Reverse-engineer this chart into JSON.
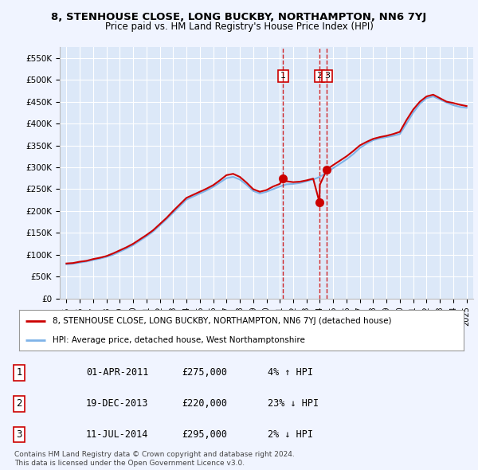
{
  "title": "8, STENHOUSE CLOSE, LONG BUCKBY, NORTHAMPTON, NN6 7YJ",
  "subtitle": "Price paid vs. HM Land Registry's House Price Index (HPI)",
  "background_color": "#f0f4ff",
  "plot_bg_color": "#dce8f8",
  "ylim": [
    0,
    575000
  ],
  "yticks": [
    0,
    50000,
    100000,
    150000,
    200000,
    250000,
    300000,
    350000,
    400000,
    450000,
    500000,
    550000
  ],
  "ytick_labels": [
    "£0",
    "£50K",
    "£100K",
    "£150K",
    "£200K",
    "£250K",
    "£300K",
    "£350K",
    "£400K",
    "£450K",
    "£500K",
    "£550K"
  ],
  "hpi_color": "#7fb3e8",
  "price_color": "#cc0000",
  "sale_marker_color": "#cc0000",
  "sale_points": [
    {
      "date": 2011.25,
      "price": 275000,
      "label": "1"
    },
    {
      "date": 2013.97,
      "price": 220000,
      "label": "2"
    },
    {
      "date": 2014.53,
      "price": 295000,
      "label": "3"
    }
  ],
  "vline_color": "#cc0000",
  "legend_red_label": "8, STENHOUSE CLOSE, LONG BUCKBY, NORTHAMPTON, NN6 7YJ (detached house)",
  "legend_blue_label": "HPI: Average price, detached house, West Northamptonshire",
  "table_rows": [
    {
      "num": "1",
      "date": "01-APR-2011",
      "price": "£275,000",
      "note": "4% ↑ HPI"
    },
    {
      "num": "2",
      "date": "19-DEC-2013",
      "price": "£220,000",
      "note": "23% ↓ HPI"
    },
    {
      "num": "3",
      "date": "11-JUL-2014",
      "price": "£295,000",
      "note": "2% ↓ HPI"
    }
  ],
  "footer": "Contains HM Land Registry data © Crown copyright and database right 2024.\nThis data is licensed under the Open Government Licence v3.0.",
  "xmin": 1994.5,
  "xmax": 2025.5,
  "hpi_years": [
    1995,
    1995.5,
    1996,
    1996.5,
    1997,
    1997.5,
    1998,
    1998.5,
    1999,
    1999.5,
    2000,
    2000.5,
    2001,
    2001.5,
    2002,
    2002.5,
    2003,
    2003.5,
    2004,
    2004.5,
    2005,
    2005.5,
    2006,
    2006.5,
    2007,
    2007.5,
    2008,
    2008.5,
    2009,
    2009.5,
    2010,
    2010.5,
    2011,
    2011.5,
    2012,
    2012.5,
    2013,
    2013.5,
    2014,
    2014.5,
    2015,
    2015.5,
    2016,
    2016.5,
    2017,
    2017.5,
    2018,
    2018.5,
    2019,
    2019.5,
    2020,
    2020.5,
    2021,
    2021.5,
    2022,
    2022.5,
    2023,
    2023.5,
    2024,
    2024.5,
    2025
  ],
  "hpi_values": [
    78000,
    79500,
    82000,
    84500,
    88000,
    91000,
    95000,
    100000,
    107000,
    114000,
    122000,
    132000,
    142000,
    153000,
    167000,
    181000,
    196000,
    211000,
    226000,
    233000,
    240000,
    247000,
    255000,
    265000,
    275000,
    278000,
    272000,
    260000,
    246000,
    240000,
    244000,
    250000,
    256000,
    261000,
    262000,
    264000,
    268000,
    272000,
    278000,
    288000,
    298000,
    308000,
    318000,
    330000,
    344000,
    354000,
    362000,
    366000,
    369000,
    372000,
    376000,
    400000,
    425000,
    445000,
    458000,
    462000,
    455000,
    448000,
    442000,
    438000,
    436000
  ],
  "price_years": [
    1995,
    1995.5,
    1996,
    1996.5,
    1997,
    1997.5,
    1998,
    1998.5,
    1999,
    1999.5,
    2000,
    2000.5,
    2001,
    2001.5,
    2002,
    2002.5,
    2003,
    2003.5,
    2004,
    2004.5,
    2005,
    2005.5,
    2006,
    2006.5,
    2007,
    2007.5,
    2008,
    2008.5,
    2009,
    2009.5,
    2010,
    2010.5,
    2011,
    2011.25,
    2011.5,
    2012,
    2012.5,
    2013,
    2013.5,
    2013.97,
    2014,
    2014.53,
    2015,
    2015.5,
    2016,
    2016.5,
    2017,
    2017.5,
    2018,
    2018.5,
    2019,
    2019.5,
    2020,
    2020.5,
    2021,
    2021.5,
    2022,
    2022.5,
    2023,
    2023.5,
    2024,
    2024.5,
    2025
  ],
  "price_values": [
    80000,
    81000,
    84000,
    86000,
    90000,
    93000,
    97000,
    103000,
    110000,
    117000,
    125000,
    135000,
    145000,
    156000,
    170000,
    184000,
    200000,
    215000,
    230000,
    237000,
    244000,
    251000,
    259000,
    270000,
    282000,
    285000,
    278000,
    265000,
    250000,
    244000,
    248000,
    256000,
    262000,
    275000,
    268000,
    266000,
    267000,
    270000,
    274000,
    220000,
    260000,
    295000,
    305000,
    315000,
    325000,
    337000,
    350000,
    358000,
    365000,
    369000,
    372000,
    376000,
    381000,
    408000,
    432000,
    450000,
    462000,
    466000,
    458000,
    450000,
    447000,
    443000,
    440000
  ]
}
